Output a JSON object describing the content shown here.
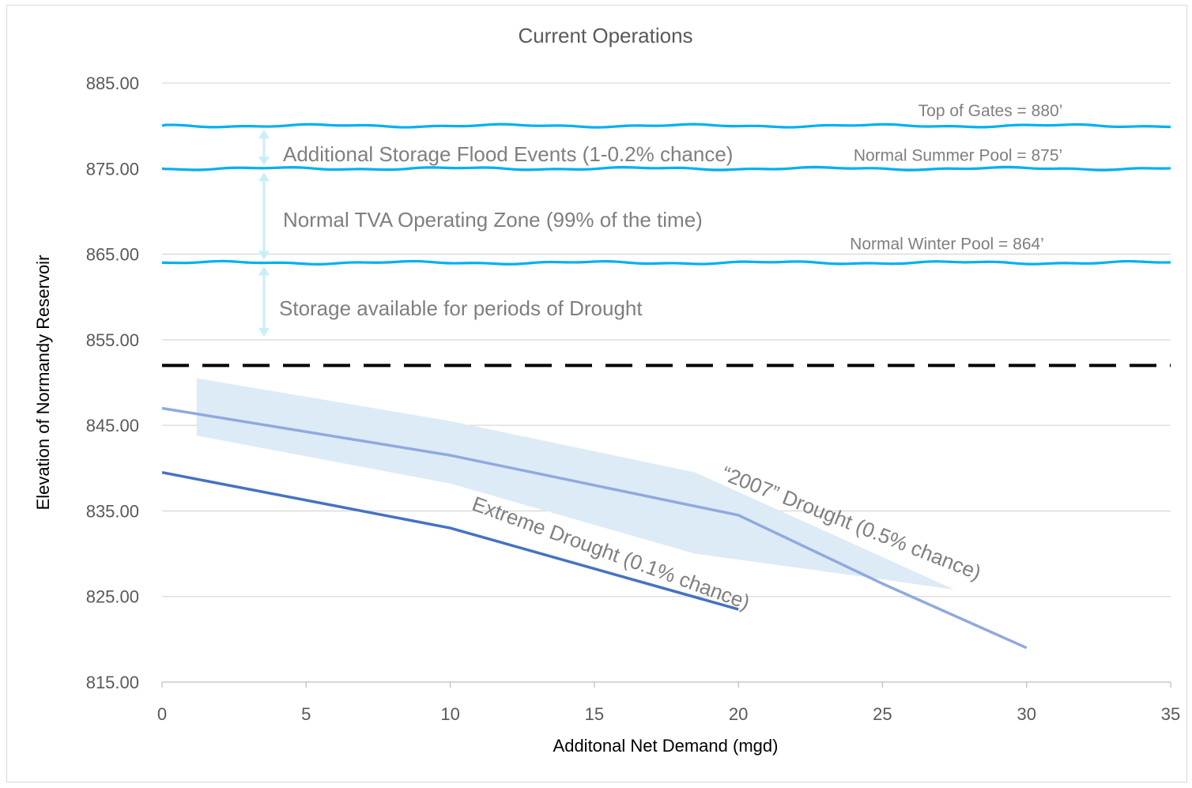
{
  "chart_data": {
    "type": "line",
    "title": "Current Operations",
    "xlabel": "Additonal Net Demand (mgd)",
    "ylabel": "Elevation of Normandy Reservoir",
    "xlim": [
      0,
      35
    ],
    "ylim": [
      815,
      885
    ],
    "x_ticks": [
      "0",
      "5",
      "10",
      "15",
      "20",
      "25",
      "30",
      "35"
    ],
    "y_ticks": [
      "815.00",
      "825.00",
      "835.00",
      "845.00",
      "855.00",
      "865.00",
      "875.00",
      "885.00"
    ],
    "grid": "horizontal",
    "series": [
      {
        "name": "“2007” Drought (0.5% chance)",
        "color": "#8faadc",
        "x": [
          0,
          10,
          20,
          25,
          30
        ],
        "y": [
          847.0,
          841.5,
          834.5,
          826.5,
          819.0
        ]
      },
      {
        "name": "Extreme Drought (0.1% chance)",
        "color": "#4472c4",
        "x": [
          0,
          10,
          20
        ],
        "y": [
          839.5,
          833.0,
          823.5
        ]
      }
    ],
    "band": {
      "color": "#ddebf7",
      "upper": {
        "x": [
          1.2,
          10,
          18.5,
          27.5
        ],
        "y": [
          850.5,
          845.5,
          839.5,
          825.8
        ]
      },
      "lower": {
        "x": [
          1.2,
          10,
          18.5,
          25
        ],
        "y": [
          843.8,
          838.2,
          830.0,
          827.0
        ]
      }
    },
    "reference_lines": [
      {
        "label": "Top of Gates = 880’",
        "y": 880,
        "color": "#00b0f0",
        "style": "wavy"
      },
      {
        "label": "Normal Summer Pool = 875’",
        "y": 875,
        "color": "#00b0f0",
        "style": "wavy"
      },
      {
        "label": "Normal Winter Pool = 864’",
        "y": 864,
        "color": "#00b0f0",
        "style": "wavy"
      },
      {
        "label": "",
        "y": 852,
        "color": "#000000",
        "style": "dashed"
      }
    ],
    "zones": [
      {
        "label": "Additional Storage Flood Events (1-0.2% chance)",
        "y_from": 875,
        "y_to": 880
      },
      {
        "label": "Normal TVA Operating Zone (99% of the time)",
        "y_from": 864,
        "y_to": 875
      },
      {
        "label": "Storage available for periods of Drought",
        "y_from": 855,
        "y_to": 864
      }
    ]
  }
}
